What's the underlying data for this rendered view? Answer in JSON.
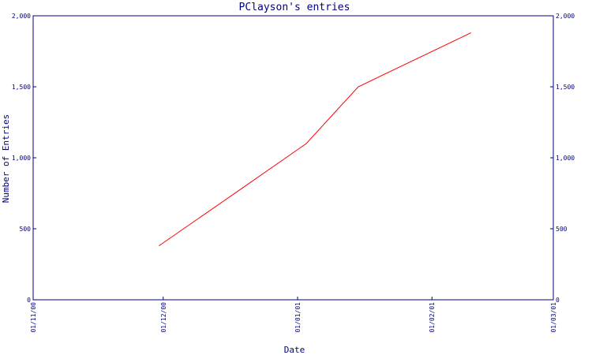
{
  "chart_data": {
    "type": "line",
    "title": "PClayson's entries",
    "xlabel": "Date",
    "ylabel": "Number of Entries",
    "x_type": "date",
    "x_ticks": [
      "01/11/00",
      "01/12/00",
      "01/01/01",
      "01/02/01",
      "01/03/01"
    ],
    "x_tick_dates": [
      "2000-11-01",
      "2000-12-01",
      "2001-01-01",
      "2001-02-01",
      "2001-03-01"
    ],
    "y_ticks": [
      "0",
      "500",
      "1,000",
      "1,500",
      "2,000"
    ],
    "y_tick_values": [
      0,
      500,
      1000,
      1500,
      2000
    ],
    "ylim": [
      0,
      2000
    ],
    "xlim": [
      "2000-11-01",
      "2001-03-01"
    ],
    "grid": false,
    "series": [
      {
        "color": "#ff0000",
        "points": [
          {
            "x": "2000-11-30",
            "y": 380
          },
          {
            "x": "2000-12-18",
            "y": 760
          },
          {
            "x": "2001-01-03",
            "y": 1100
          },
          {
            "x": "2001-01-15",
            "y": 1500
          },
          {
            "x": "2001-02-10",
            "y": 1880
          }
        ]
      }
    ]
  },
  "colors": {
    "axis": "#000080",
    "text": "#000080",
    "line": "#ff0000",
    "background": "#ffffff"
  }
}
